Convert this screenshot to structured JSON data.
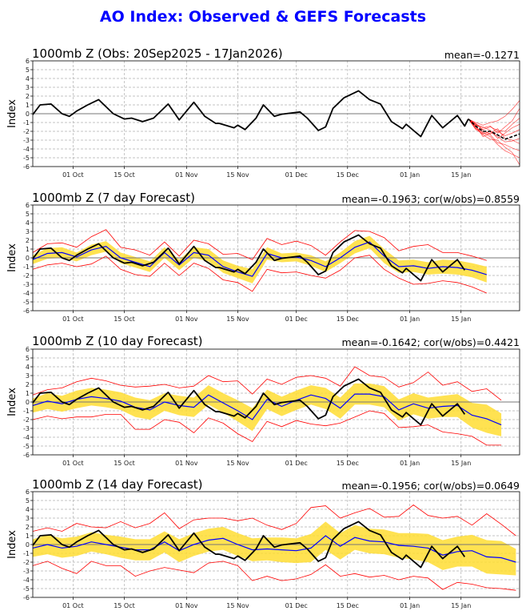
{
  "chart_data": [
    {
      "type": "line",
      "title": "AO Index: Observed & GEFS Forecasts",
      "panels_shared": {
        "xlim": [
          "2025-09-20",
          "2026-01-31"
        ],
        "ylim": [
          -6,
          6
        ],
        "ylabel": "Index",
        "yticks": [
          -6,
          -5,
          -4,
          -3,
          -2,
          -1,
          0,
          1,
          2,
          3,
          4,
          5,
          6
        ],
        "xticks": [
          {
            "date": "2025-10-01",
            "label": "01 Oct"
          },
          {
            "date": "2025-10-15",
            "label": "15 Oct"
          },
          {
            "date": "2025-11-01",
            "label": "01 Nov"
          },
          {
            "date": "2025-11-15",
            "label": "15 Nov"
          },
          {
            "date": "2025-12-01",
            "label": "01 Dec"
          },
          {
            "date": "2025-12-15",
            "label": "15 Dec"
          },
          {
            "date": "2026-01-01",
            "label": "01 Jan"
          },
          {
            "date": "2026-01-15",
            "label": "15 Jan"
          }
        ],
        "grid": true,
        "colors": {
          "observed": "#000000",
          "forecast_mean": "#0000ff",
          "spread_band": "#ffdd33",
          "envelope": "#ff0000",
          "members": "#ff0000"
        }
      },
      "observed": [
        [
          "2025-09-20",
          -0.1
        ],
        [
          "2025-09-22",
          1.0
        ],
        [
          "2025-09-25",
          1.1
        ],
        [
          "2025-09-28",
          0.0
        ],
        [
          "2025-09-30",
          -0.3
        ],
        [
          "2025-10-02",
          0.3
        ],
        [
          "2025-10-05",
          1.0
        ],
        [
          "2025-10-08",
          1.6
        ],
        [
          "2025-10-12",
          0.0
        ],
        [
          "2025-10-15",
          -0.6
        ],
        [
          "2025-10-17",
          -0.5
        ],
        [
          "2025-10-20",
          -0.9
        ],
        [
          "2025-10-23",
          -0.5
        ],
        [
          "2025-10-27",
          1.1
        ],
        [
          "2025-10-30",
          -0.7
        ],
        [
          "2025-11-03",
          1.3
        ],
        [
          "2025-11-06",
          -0.3
        ],
        [
          "2025-11-09",
          -1.1
        ],
        [
          "2025-11-10",
          -1.1
        ],
        [
          "2025-11-14",
          -1.6
        ],
        [
          "2025-11-15",
          -1.3
        ],
        [
          "2025-11-17",
          -1.8
        ],
        [
          "2025-11-20",
          -0.5
        ],
        [
          "2025-11-22",
          1.0
        ],
        [
          "2025-11-25",
          -0.3
        ],
        [
          "2025-11-27",
          -0.05
        ],
        [
          "2025-12-02",
          0.2
        ],
        [
          "2025-12-04",
          -0.5
        ],
        [
          "2025-12-07",
          -1.9
        ],
        [
          "2025-12-09",
          -1.5
        ],
        [
          "2025-12-11",
          0.6
        ],
        [
          "2025-12-14",
          1.8
        ],
        [
          "2025-12-18",
          2.6
        ],
        [
          "2025-12-21",
          1.6
        ],
        [
          "2025-12-24",
          1.1
        ],
        [
          "2025-12-27",
          -0.9
        ],
        [
          "2025-12-30",
          -1.7
        ],
        [
          "2025-12-31",
          -1.2
        ],
        [
          "2026-01-04",
          -2.6
        ],
        [
          "2026-01-07",
          -0.2
        ],
        [
          "2026-01-10",
          -1.6
        ],
        [
          "2026-01-14",
          -0.2
        ],
        [
          "2026-01-16",
          -1.4
        ],
        [
          "2026-01-17",
          -0.6
        ]
      ],
      "panels": [
        {
          "title": "1000mb Z (Obs: 20Sep2025 - 17Jan2026)",
          "stat": "mean=-0.1271",
          "ensemble": {
            "dates": [
              "2026-01-17",
              "2026-01-19",
              "2026-01-21",
              "2026-01-23",
              "2026-01-25",
              "2026-01-27",
              "2026-01-29",
              "2026-01-31"
            ],
            "mean": [
              -0.6,
              -1.4,
              -2.0,
              -2.0,
              -2.4,
              -2.9,
              -2.6,
              -2.3
            ],
            "members": [
              [
                -0.6,
                -1.0,
                -1.3,
                -1.0,
                -0.8,
                -0.3,
                0.5,
                1.5
              ],
              [
                -0.6,
                -1.5,
                -2.2,
                -2.6,
                -3.5,
                -4.2,
                -4.6,
                -5.0
              ],
              [
                -0.6,
                -1.2,
                -1.8,
                -1.5,
                -1.9,
                -2.0,
                -1.2,
                -0.5
              ],
              [
                -0.6,
                -1.6,
                -2.4,
                -2.9,
                -3.0,
                -3.8,
                -4.4,
                -5.8
              ],
              [
                -0.6,
                -1.3,
                -1.6,
                -1.4,
                -2.2,
                -1.5,
                -0.8,
                0.6
              ],
              [
                -0.6,
                -1.8,
                -2.3,
                -2.0,
                -2.6,
                -3.2,
                -3.1,
                -2.8
              ],
              [
                -0.6,
                -1.1,
                -1.9,
                -2.3,
                -2.0,
                -2.5,
                -2.2,
                -1.8
              ],
              [
                -0.6,
                -1.7,
                -2.1,
                -2.4,
                -3.3,
                -3.5,
                -3.9,
                -4.2
              ],
              [
                -0.6,
                -1.4,
                -2.6,
                -2.2,
                -1.7,
                -2.8,
                -3.0,
                -3.4
              ],
              [
                -0.6,
                -1.2,
                -1.5,
                -1.9,
                -2.8,
                -2.2,
                -1.6,
                -1.2
              ]
            ]
          }
        },
        {
          "title": "1000mb Z (7 day Forecast)",
          "stat": "mean=-0.1963; cor(w/obs)=0.8559",
          "forecast": {
            "mean": [
              -0.2,
              0.5,
              0.6,
              0.1,
              0.9,
              1.3,
              0.0,
              -0.5,
              -1.0,
              0.6,
              -0.8,
              0.6,
              0.3,
              -1.0,
              -1.6,
              -2.1,
              0.5,
              0.0,
              0.1,
              -0.3,
              -1.0,
              0.0,
              1.2,
              1.8,
              0.2,
              -1.0,
              -0.9,
              -1.2,
              -1.0,
              -1.1,
              -1.4,
              -1.9
            ],
            "spread": [
              0.5,
              0.6,
              0.6,
              0.5,
              0.6,
              0.6,
              0.6,
              0.6,
              0.6,
              0.6,
              0.6,
              0.6,
              0.7,
              0.7,
              0.7,
              0.8,
              0.7,
              0.5,
              0.5,
              0.6,
              0.6,
              0.6,
              0.7,
              0.7,
              0.8,
              0.7,
              0.7,
              0.7,
              0.8,
              0.8,
              0.8,
              0.9
            ],
            "upper": [
              0.6,
              1.6,
              1.7,
              1.2,
              2.4,
              3.2,
              1.2,
              0.9,
              0.3,
              1.8,
              0.2,
              2.0,
              1.6,
              0.4,
              0.5,
              -0.2,
              2.2,
              1.5,
              1.9,
              1.4,
              0.3,
              1.8,
              3.1,
              3.0,
              2.3,
              0.8,
              1.3,
              1.5,
              0.6,
              0.6,
              0.2,
              -0.3
            ],
            "lower": [
              -1.3,
              -0.8,
              -0.6,
              -1.0,
              -0.7,
              0.2,
              -1.3,
              -1.9,
              -2.1,
              -0.6,
              -2.0,
              -0.6,
              -1.2,
              -2.5,
              -2.8,
              -3.8,
              -1.3,
              -1.7,
              -1.6,
              -2.0,
              -2.3,
              -1.4,
              0.0,
              0.3,
              -1.3,
              -2.3,
              -3.0,
              -2.9,
              -2.6,
              -2.8,
              -3.3,
              -4.0
            ]
          }
        },
        {
          "title": "1000mb Z (10 day Forecast)",
          "stat": "mean=-0.1642; cor(w/obs)=0.4421",
          "forecast": {
            "mean": [
              -0.4,
              0.1,
              -0.2,
              0.3,
              0.6,
              0.4,
              0.1,
              -0.6,
              -0.9,
              0.0,
              -0.4,
              -0.6,
              0.8,
              -0.1,
              -1.0,
              -2.0,
              0.3,
              -0.5,
              0.2,
              0.8,
              0.4,
              -0.7,
              0.9,
              0.9,
              0.6,
              -0.9,
              -0.2,
              -0.7,
              -0.5,
              -0.4,
              -1.5,
              -1.9,
              -2.6
            ],
            "spread": [
              0.8,
              0.9,
              0.9,
              1.0,
              1.0,
              1.0,
              1.0,
              1.1,
              1.1,
              1.0,
              1.1,
              1.1,
              1.1,
              1.1,
              1.2,
              1.3,
              1.1,
              1.1,
              1.1,
              1.1,
              1.2,
              1.2,
              1.2,
              1.2,
              1.2,
              1.2,
              1.2,
              1.2,
              1.2,
              1.3,
              1.4,
              1.6,
              1.3
            ],
            "upper": [
              0.8,
              1.4,
              1.6,
              2.3,
              2.7,
              2.4,
              1.9,
              1.7,
              1.8,
              2.0,
              1.6,
              1.8,
              3.0,
              2.3,
              2.4,
              0.9,
              2.6,
              2.0,
              2.8,
              3.0,
              2.7,
              1.8,
              4.0,
              3.0,
              2.8,
              1.7,
              2.2,
              3.4,
              1.9,
              2.3,
              1.2,
              1.5,
              0.2
            ],
            "lower": [
              -2.0,
              -1.6,
              -1.9,
              -1.7,
              -1.7,
              -1.4,
              -1.4,
              -3.1,
              -3.1,
              -2.0,
              -2.3,
              -3.5,
              -1.8,
              -2.4,
              -3.6,
              -4.5,
              -2.2,
              -2.8,
              -2.1,
              -2.5,
              -2.7,
              -2.4,
              -1.7,
              -1.0,
              -1.3,
              -2.9,
              -2.8,
              -2.6,
              -3.4,
              -3.6,
              -3.9,
              -4.9,
              -4.9
            ]
          }
        },
        {
          "title": "1000mb Z (14 day Forecast)",
          "stat": "mean=-0.1956; cor(w/obs)=0.0649",
          "forecast": {
            "mean": [
              -0.4,
              0.0,
              -0.4,
              -0.2,
              0.3,
              0.0,
              -0.3,
              -0.6,
              -0.6,
              0.3,
              -0.7,
              0.0,
              0.5,
              0.7,
              0.0,
              -0.6,
              -0.5,
              -0.6,
              -0.7,
              -0.4,
              1.0,
              -0.2,
              0.8,
              0.4,
              0.3,
              -0.1,
              -0.2,
              -0.4,
              -1.2,
              -0.8,
              -0.7,
              -1.4,
              -1.5,
              -2.0
            ],
            "spread": [
              1.0,
              1.1,
              1.1,
              1.1,
              1.1,
              1.1,
              1.2,
              1.2,
              1.2,
              1.2,
              1.3,
              1.3,
              1.3,
              1.3,
              1.3,
              1.3,
              1.3,
              1.4,
              1.4,
              1.6,
              1.6,
              1.5,
              1.4,
              1.4,
              1.4,
              1.4,
              1.5,
              1.6,
              1.7,
              1.7,
              1.8,
              1.9,
              1.9,
              1.5
            ],
            "upper": [
              1.5,
              1.9,
              1.5,
              2.4,
              2.0,
              1.9,
              2.6,
              1.9,
              2.4,
              3.6,
              1.8,
              2.8,
              3.0,
              3.0,
              2.7,
              3.0,
              2.2,
              1.7,
              2.4,
              4.2,
              4.4,
              3.0,
              3.6,
              4.1,
              3.1,
              3.2,
              4.5,
              3.3,
              3.0,
              3.2,
              2.2,
              3.5,
              2.3,
              1.0
            ],
            "lower": [
              -2.4,
              -1.9,
              -2.7,
              -3.3,
              -1.9,
              -2.4,
              -2.4,
              -3.6,
              -3.0,
              -2.6,
              -2.9,
              -3.2,
              -2.1,
              -1.9,
              -2.4,
              -4.1,
              -3.6,
              -4.1,
              -3.9,
              -3.4,
              -2.3,
              -3.6,
              -3.3,
              -3.7,
              -3.5,
              -4.0,
              -3.6,
              -3.8,
              -5.1,
              -4.3,
              -4.5,
              -4.9,
              -5.0,
              -5.2
            ]
          }
        }
      ],
      "forecast_dates": [
        "2025-09-20",
        "2025-09-24",
        "2025-09-28",
        "2025-10-02",
        "2025-10-06",
        "2025-10-10",
        "2025-10-14",
        "2025-10-18",
        "2025-10-22",
        "2025-10-26",
        "2025-10-30",
        "2025-11-03",
        "2025-11-07",
        "2025-11-11",
        "2025-11-15",
        "2025-11-19",
        "2025-11-23",
        "2025-11-27",
        "2025-12-01",
        "2025-12-05",
        "2025-12-09",
        "2025-12-13",
        "2025-12-17",
        "2025-12-21",
        "2025-12-25",
        "2025-12-29",
        "2026-01-02",
        "2026-01-06",
        "2026-01-10",
        "2026-01-14",
        "2026-01-18",
        "2026-01-22",
        "2026-01-26",
        "2026-01-30"
      ]
    }
  ]
}
